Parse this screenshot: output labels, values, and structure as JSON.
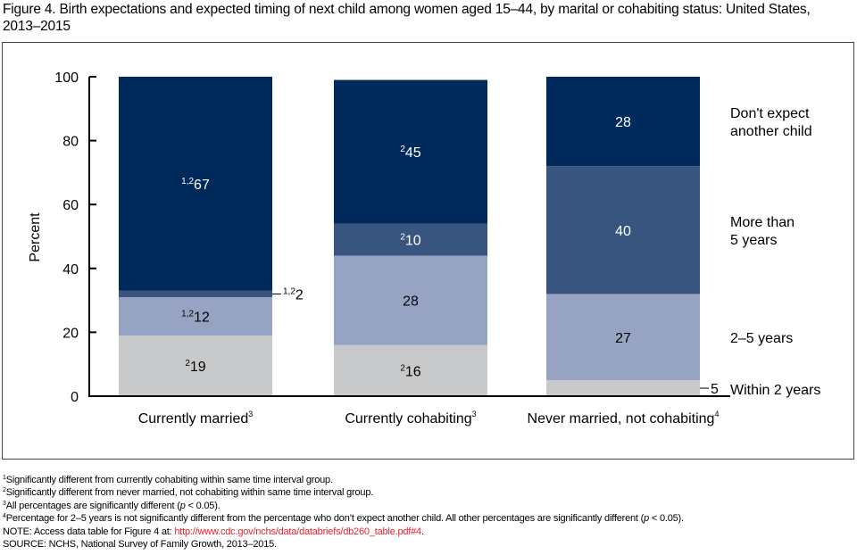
{
  "title": "Figure 4. Birth expectations and expected timing of next child among women aged 15–44, by marital or cohabiting status: United States, 2013–2015",
  "chart_data": {
    "type": "bar",
    "stacked": true,
    "title": "Figure 4. Birth expectations and expected timing of next child among women aged 15–44, by marital or cohabiting status: United States, 2013–2015",
    "xlabel": "",
    "ylabel": "Percent",
    "ylim": [
      0,
      100
    ],
    "yticks": [
      0,
      20,
      40,
      60,
      80,
      100
    ],
    "grid": false,
    "legend_placement": "right",
    "categories": [
      {
        "label": "Currently married",
        "sup": "3"
      },
      {
        "label": "Currently cohabiting",
        "sup": "3"
      },
      {
        "label": "Never married, not cohabiting",
        "sup": "4"
      }
    ],
    "series": [
      {
        "name": "Within 2 years",
        "color": "#c8c9cb",
        "text_color": "#000000",
        "values": [
          19,
          16,
          5
        ],
        "sups": [
          "2",
          "2",
          ""
        ],
        "label_outside": [
          false,
          false,
          true
        ]
      },
      {
        "name": "2–5 years",
        "color": "#96a3c3",
        "text_color": "#000000",
        "values": [
          12,
          28,
          27
        ],
        "sups": [
          "1,2",
          "",
          ""
        ],
        "label_outside": [
          false,
          false,
          false
        ]
      },
      {
        "name": "More than 5 years",
        "color": "#385580",
        "text_color": "#ffffff",
        "values": [
          2,
          10,
          40
        ],
        "sups": [
          "1,2",
          "2",
          ""
        ],
        "label_outside": [
          true,
          false,
          false
        ]
      },
      {
        "name": "Don't expect another child",
        "color": "#002a5c",
        "text_color": "#ffffff",
        "values": [
          67,
          45,
          28
        ],
        "sups": [
          "1,2",
          "2",
          ""
        ],
        "label_outside": [
          false,
          false,
          false
        ]
      }
    ],
    "legend": [
      {
        "lines": [
          "Don't expect",
          "another child"
        ]
      },
      {
        "lines": [
          "More than",
          "5 years"
        ]
      },
      {
        "lines": [
          "2–5 years"
        ]
      },
      {
        "lines": [
          "Within 2 years"
        ]
      }
    ]
  },
  "footnotes": {
    "f1": {
      "sup": "1",
      "text": "Significantly different from currently cohabiting within same time interval group."
    },
    "f2": {
      "sup": "2",
      "text": "Significantly different from never married, not cohabiting within same time interval group."
    },
    "f3": {
      "sup": "3",
      "pre": "All percentages are significantly different (",
      "p": "p",
      "post": " < 0.05)."
    },
    "f4": {
      "sup": "4",
      "pre": "Percentage for 2–5 years is not significantly different from the percentage who don’t expect another child. All other percentages are significantly different (",
      "p": "p",
      "post": " < 0.05)."
    },
    "note_prefix": "NOTE: Access data table for Figure 4 at: ",
    "note_link": "http://www.cdc.gov/nchs/data/databriefs/db260_table.pdf#4",
    "note_suffix": ".",
    "source": "SOURCE: NCHS, National Survey of Family Growth, 2013–2015."
  }
}
